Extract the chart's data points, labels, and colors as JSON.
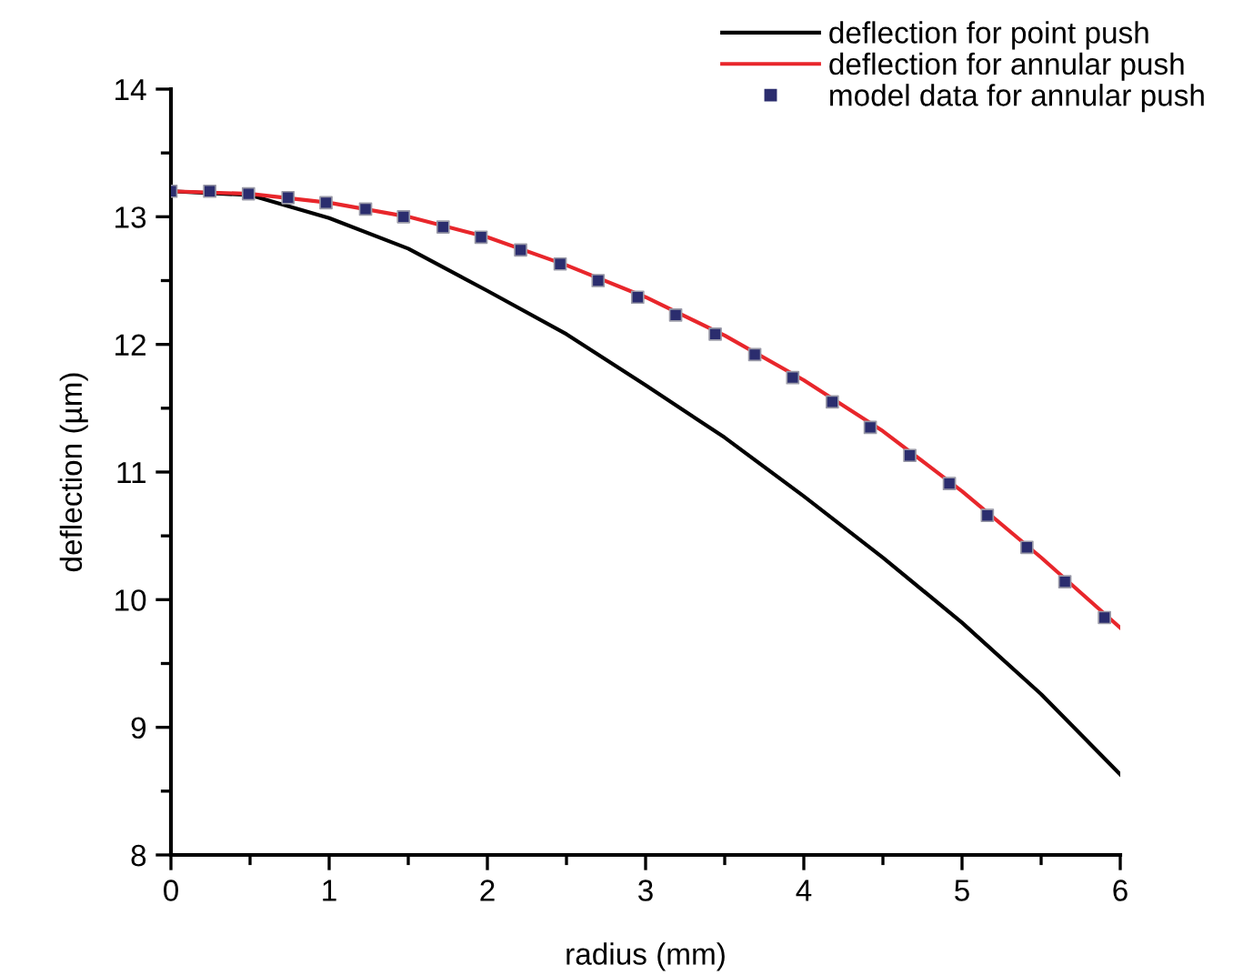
{
  "chart_data": {
    "type": "line",
    "xlabel": "radius (mm)",
    "ylabel": "deflection (µm)",
    "xlim": [
      0,
      6
    ],
    "ylim": [
      8,
      14
    ],
    "xticks": [
      0,
      {
        "value": 0.5,
        "label": null
      },
      1,
      {
        "value": 1.5,
        "label": null
      },
      2,
      {
        "value": 2.5,
        "label": null
      },
      3,
      {
        "value": 3.5,
        "label": null
      },
      4,
      {
        "value": 4.5,
        "label": null
      },
      5,
      {
        "value": 5.5,
        "label": null
      },
      6
    ],
    "yticks": [
      8,
      {
        "value": 8.5,
        "label": null
      },
      9,
      {
        "value": 9.5,
        "label": null
      },
      10,
      {
        "value": 10.5,
        "label": null
      },
      11,
      {
        "value": 11.5,
        "label": null
      },
      12,
      {
        "value": 12.5,
        "label": null
      },
      13,
      {
        "value": 13.5,
        "label": null
      },
      14
    ],
    "grid": false,
    "legend": "top right",
    "series": [
      {
        "name": "deflection for point push",
        "color": "#000000",
        "marker": "none",
        "line_style": "solid",
        "x": [
          0,
          0.5,
          1,
          1.5,
          2,
          2.5,
          3,
          3.5,
          4,
          4.5,
          5,
          5.5,
          6
        ],
        "values": [
          13.2,
          13.17,
          12.99,
          12.75,
          12.42,
          12.08,
          11.68,
          11.27,
          10.81,
          10.33,
          9.82,
          9.26,
          8.63
        ]
      },
      {
        "name": "deflection for annular push",
        "color": "#e8262b",
        "marker": "none",
        "line_style": "solid",
        "x": [
          0,
          0.5,
          1,
          1.5,
          2,
          2.5,
          3,
          3.5,
          4,
          4.5,
          5,
          5.5,
          6
        ],
        "values": [
          13.2,
          13.18,
          13.11,
          13.0,
          12.84,
          12.62,
          12.37,
          12.07,
          11.72,
          11.32,
          10.85,
          10.33,
          9.78
        ]
      },
      {
        "name": "model data for annular push",
        "type": "scatter",
        "color": "#2b2d6e",
        "marker": "square",
        "x": [
          0,
          0.245,
          0.49,
          0.74,
          0.98,
          1.23,
          1.47,
          1.72,
          1.96,
          2.21,
          2.46,
          2.7,
          2.95,
          3.19,
          3.44,
          3.69,
          3.93,
          4.18,
          4.42,
          4.67,
          4.92,
          5.16,
          5.41,
          5.65,
          5.9
        ],
        "values": [
          13.2,
          13.2,
          13.18,
          13.15,
          13.11,
          13.06,
          13.0,
          12.92,
          12.84,
          12.74,
          12.63,
          12.5,
          12.37,
          12.23,
          12.08,
          11.92,
          11.74,
          11.55,
          11.35,
          11.13,
          10.91,
          10.66,
          10.41,
          10.14,
          9.86
        ]
      }
    ]
  }
}
